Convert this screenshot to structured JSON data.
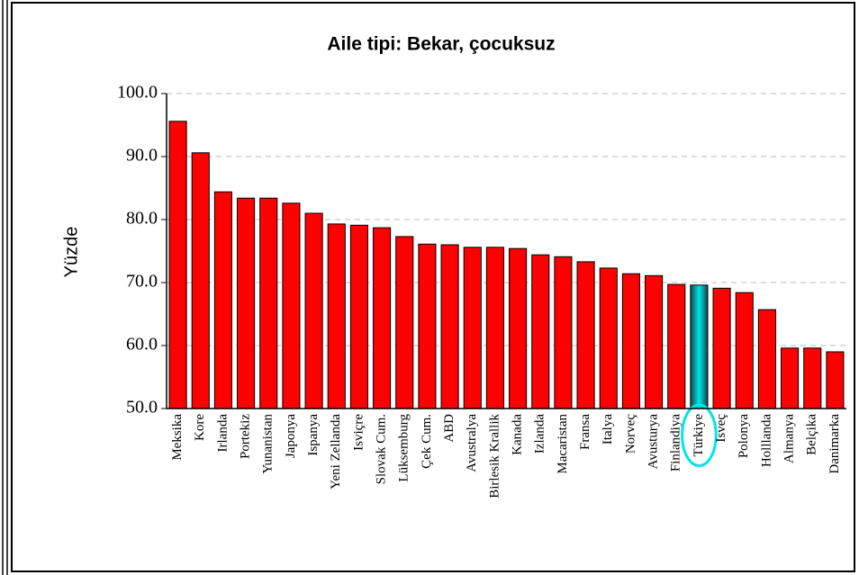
{
  "chart_data": {
    "type": "bar",
    "title": "Aile tipi: Bekar, çocuksuz",
    "y_label": "Yüzde",
    "categories": [
      "Meksika",
      "Kore",
      "Irlanda",
      "Portekiz",
      "Yunanistan",
      "Japonya",
      "Ispanya",
      "Yeni Zellanda",
      "Isviçre",
      "Slovak Cum.",
      "Lüksemburg",
      "Çek Cum.",
      "ABD",
      "Avustralya",
      "Birlesik Krallik",
      "Kanada",
      "Izlanda",
      "Macaristan",
      "Fransa",
      "Italya",
      "Norveç",
      "Avusturya",
      "Finlandiya",
      "Türkiye",
      "Isveç",
      "Polonya",
      "Holllanda",
      "Almanya",
      "Belçika",
      "Danimarka"
    ],
    "values": [
      95.6,
      90.6,
      84.4,
      83.4,
      83.4,
      82.6,
      81.0,
      79.3,
      79.1,
      78.7,
      77.3,
      76.1,
      76.0,
      75.6,
      75.6,
      75.4,
      74.4,
      74.1,
      73.3,
      72.3,
      71.4,
      71.1,
      69.7,
      69.6,
      69.1,
      68.4,
      65.7,
      59.6,
      59.6,
      59.0
    ],
    "color": "#ff0000",
    "colors": [
      "#ff0000",
      "#ff0000",
      "#ff0000",
      "#ff0000",
      "#ff0000",
      "#ff0000",
      "#ff0000",
      "#ff0000",
      "#ff0000",
      "#ff0000",
      "#ff0000",
      "#ff0000",
      "#ff0000",
      "#ff0000",
      "#ff0000",
      "#ff0000",
      "#ff0000",
      "#ff0000",
      "#ff0000",
      "#ff0000",
      "#ff0000",
      "#ff0000",
      "#ff0000",
      "#00e5e5",
      "#ff0000",
      "#ff0000",
      "#ff0000",
      "#ff0000",
      "#ff0000",
      "#ff0000"
    ],
    "ylim": [
      50,
      100
    ],
    "yticks": [
      {
        "value": 50,
        "label": "50.0"
      },
      {
        "value": 60,
        "label": "60.0"
      },
      {
        "value": 70,
        "label": "70.0"
      },
      {
        "value": 80,
        "label": "80.0"
      },
      {
        "value": 90,
        "label": "90.0"
      },
      {
        "value": 100,
        "label": "100.0"
      }
    ],
    "grid": true
  }
}
